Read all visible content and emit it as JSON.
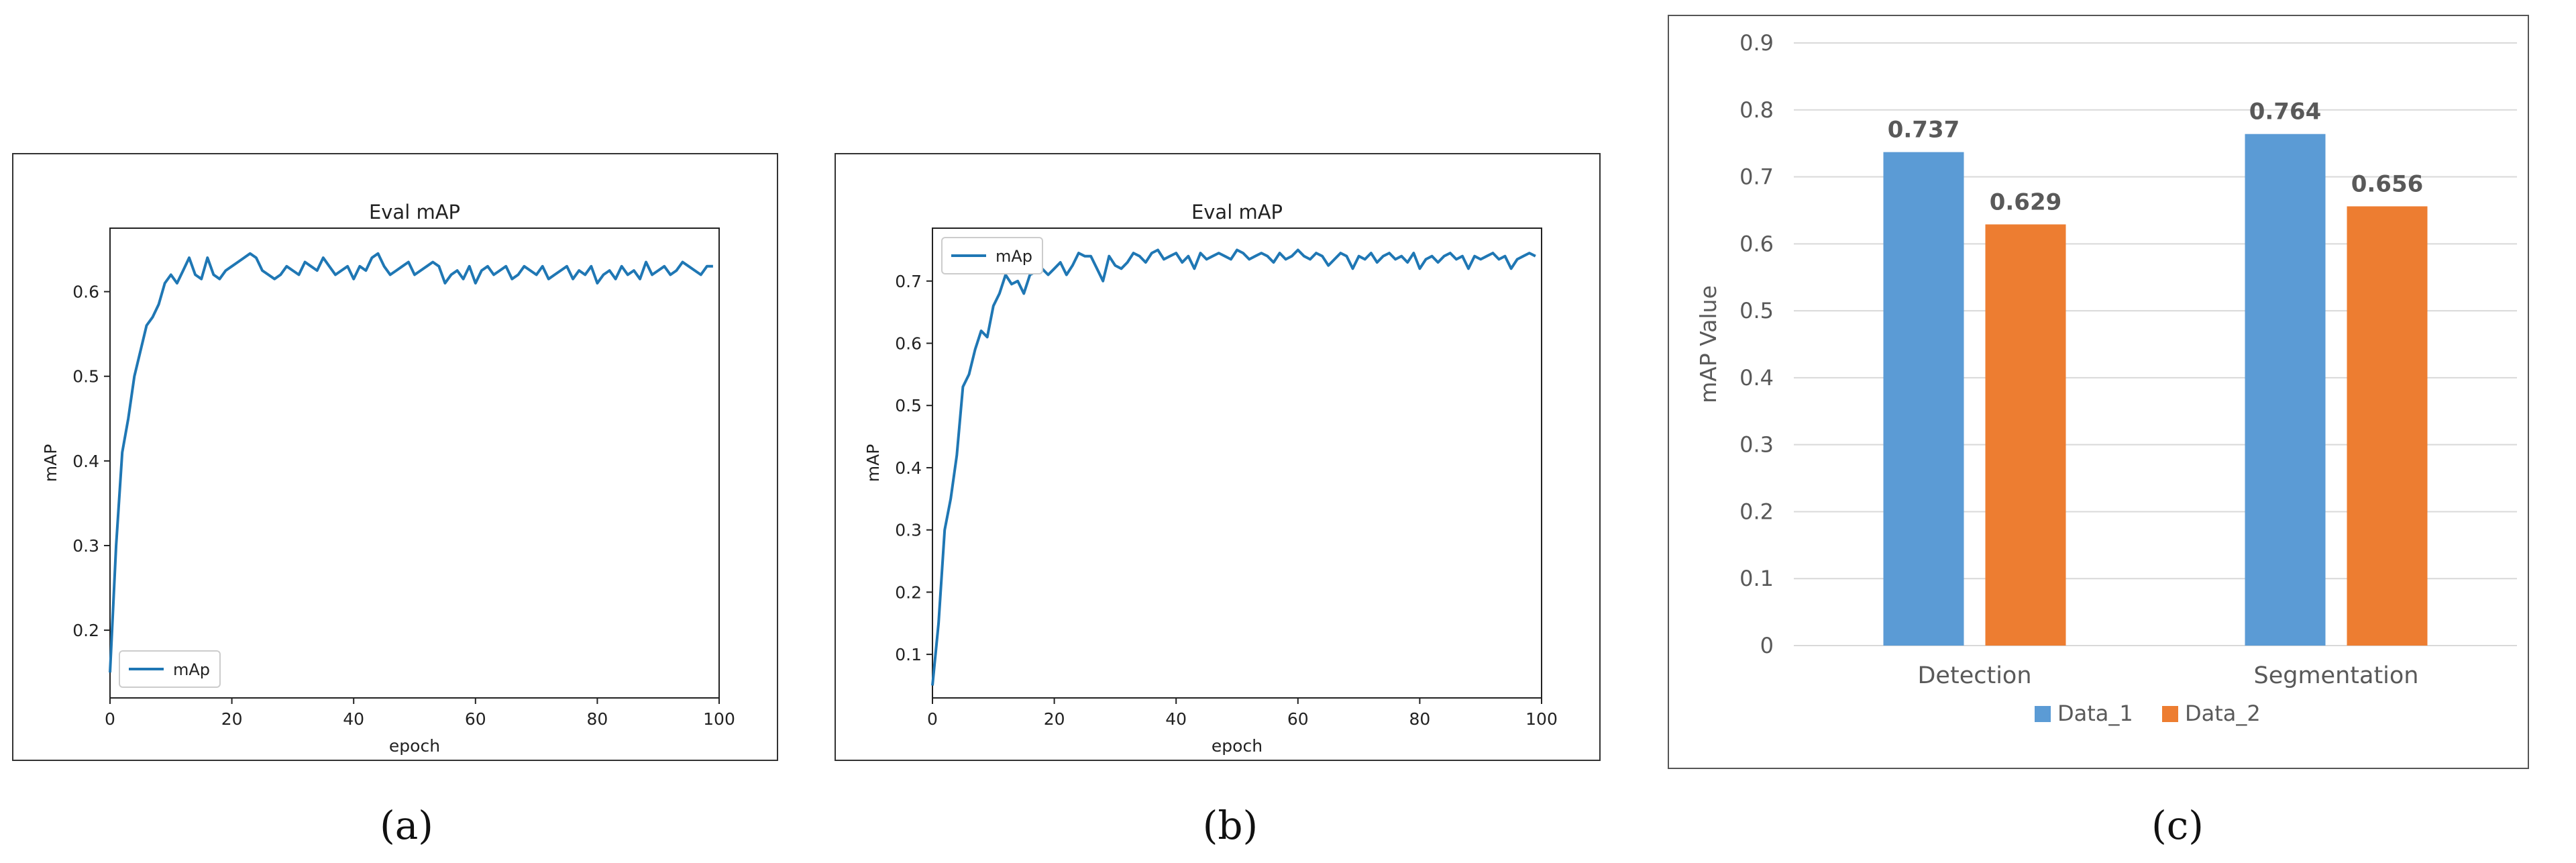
{
  "chart_data": [
    {
      "type": "line",
      "title": "Eval mAP",
      "xlabel": "epoch",
      "ylabel": "mAP",
      "xlim": [
        0,
        100
      ],
      "ylim": [
        0.12,
        0.675
      ],
      "xticks": [
        0,
        20,
        40,
        60,
        80,
        100
      ],
      "yticks": [
        0.2,
        0.3,
        0.4,
        0.5,
        0.6
      ],
      "legend_position": "lower-left",
      "grid": false,
      "series": [
        {
          "name": "mAp",
          "color": "#1f77b4",
          "x": [
            0,
            1,
            2,
            3,
            4,
            5,
            6,
            7,
            8,
            9,
            10,
            11,
            12,
            13,
            14,
            15,
            16,
            17,
            18,
            19,
            20,
            21,
            22,
            23,
            24,
            25,
            26,
            27,
            28,
            29,
            30,
            31,
            32,
            33,
            34,
            35,
            36,
            37,
            38,
            39,
            40,
            41,
            42,
            43,
            44,
            45,
            46,
            47,
            48,
            49,
            50,
            51,
            52,
            53,
            54,
            55,
            56,
            57,
            58,
            59,
            60,
            61,
            62,
            63,
            64,
            65,
            66,
            67,
            68,
            69,
            70,
            71,
            72,
            73,
            74,
            75,
            76,
            77,
            78,
            79,
            80,
            81,
            82,
            83,
            84,
            85,
            86,
            87,
            88,
            89,
            90,
            91,
            92,
            93,
            94,
            95,
            96,
            97,
            98,
            99
          ],
          "y": [
            0.15,
            0.3,
            0.41,
            0.45,
            0.5,
            0.53,
            0.56,
            0.57,
            0.585,
            0.61,
            0.62,
            0.61,
            0.625,
            0.64,
            0.62,
            0.615,
            0.64,
            0.62,
            0.615,
            0.625,
            0.63,
            0.635,
            0.64,
            0.645,
            0.64,
            0.625,
            0.62,
            0.615,
            0.62,
            0.63,
            0.625,
            0.62,
            0.635,
            0.63,
            0.625,
            0.64,
            0.63,
            0.62,
            0.625,
            0.63,
            0.615,
            0.63,
            0.625,
            0.64,
            0.645,
            0.63,
            0.62,
            0.625,
            0.63,
            0.635,
            0.62,
            0.625,
            0.63,
            0.635,
            0.63,
            0.61,
            0.62,
            0.625,
            0.615,
            0.63,
            0.61,
            0.625,
            0.63,
            0.62,
            0.625,
            0.63,
            0.615,
            0.62,
            0.63,
            0.625,
            0.62,
            0.63,
            0.615,
            0.62,
            0.625,
            0.63,
            0.615,
            0.625,
            0.62,
            0.63,
            0.61,
            0.62,
            0.625,
            0.615,
            0.63,
            0.62,
            0.625,
            0.615,
            0.635,
            0.62,
            0.625,
            0.63,
            0.62,
            0.625,
            0.635,
            0.63,
            0.625,
            0.62,
            0.63,
            0.63
          ]
        }
      ],
      "caption": "(a)"
    },
    {
      "type": "line",
      "title": "Eval mAP",
      "xlabel": "epoch",
      "ylabel": "mAP",
      "xlim": [
        0,
        100
      ],
      "ylim": [
        0.03,
        0.785
      ],
      "xticks": [
        0,
        20,
        40,
        60,
        80,
        100
      ],
      "yticks": [
        0.1,
        0.2,
        0.3,
        0.4,
        0.5,
        0.6,
        0.7
      ],
      "legend_position": "upper-left",
      "grid": false,
      "series": [
        {
          "name": "mAp",
          "color": "#1f77b4",
          "x": [
            0,
            1,
            2,
            3,
            4,
            5,
            6,
            7,
            8,
            9,
            10,
            11,
            12,
            13,
            14,
            15,
            16,
            17,
            18,
            19,
            20,
            21,
            22,
            23,
            24,
            25,
            26,
            27,
            28,
            29,
            30,
            31,
            32,
            33,
            34,
            35,
            36,
            37,
            38,
            39,
            40,
            41,
            42,
            43,
            44,
            45,
            46,
            47,
            48,
            49,
            50,
            51,
            52,
            53,
            54,
            55,
            56,
            57,
            58,
            59,
            60,
            61,
            62,
            63,
            64,
            65,
            66,
            67,
            68,
            69,
            70,
            71,
            72,
            73,
            74,
            75,
            76,
            77,
            78,
            79,
            80,
            81,
            82,
            83,
            84,
            85,
            86,
            87,
            88,
            89,
            90,
            91,
            92,
            93,
            94,
            95,
            96,
            97,
            98,
            99
          ],
          "y": [
            0.05,
            0.15,
            0.3,
            0.35,
            0.42,
            0.53,
            0.55,
            0.59,
            0.62,
            0.61,
            0.66,
            0.68,
            0.71,
            0.695,
            0.7,
            0.68,
            0.71,
            0.715,
            0.72,
            0.71,
            0.72,
            0.73,
            0.71,
            0.725,
            0.745,
            0.74,
            0.74,
            0.72,
            0.7,
            0.74,
            0.725,
            0.72,
            0.73,
            0.745,
            0.74,
            0.73,
            0.745,
            0.75,
            0.735,
            0.74,
            0.745,
            0.73,
            0.74,
            0.72,
            0.745,
            0.735,
            0.74,
            0.745,
            0.74,
            0.735,
            0.75,
            0.745,
            0.735,
            0.74,
            0.745,
            0.74,
            0.73,
            0.745,
            0.735,
            0.74,
            0.75,
            0.74,
            0.735,
            0.745,
            0.74,
            0.725,
            0.735,
            0.745,
            0.74,
            0.72,
            0.74,
            0.735,
            0.745,
            0.73,
            0.74,
            0.745,
            0.735,
            0.74,
            0.73,
            0.745,
            0.72,
            0.735,
            0.74,
            0.73,
            0.74,
            0.745,
            0.735,
            0.74,
            0.72,
            0.74,
            0.735,
            0.74,
            0.745,
            0.735,
            0.74,
            0.72,
            0.735,
            0.74,
            0.745,
            0.74
          ]
        }
      ],
      "caption": "(b)"
    },
    {
      "type": "bar",
      "title": "",
      "xlabel": "",
      "ylabel": "mAP  Value",
      "ylim": [
        0,
        0.9
      ],
      "yticks": [
        0,
        0.1,
        0.2,
        0.3,
        0.4,
        0.5,
        0.6,
        0.7,
        0.8,
        0.9
      ],
      "categories": [
        "Detection",
        "Segmentation"
      ],
      "legend_position": "bottom",
      "grid": true,
      "series": [
        {
          "name": "Data_1",
          "color": "#5b9bd5",
          "values": [
            0.737,
            0.764
          ]
        },
        {
          "name": "Data_2",
          "color": "#ed7d31",
          "values": [
            0.629,
            0.656
          ]
        }
      ],
      "caption": "(c)"
    }
  ]
}
